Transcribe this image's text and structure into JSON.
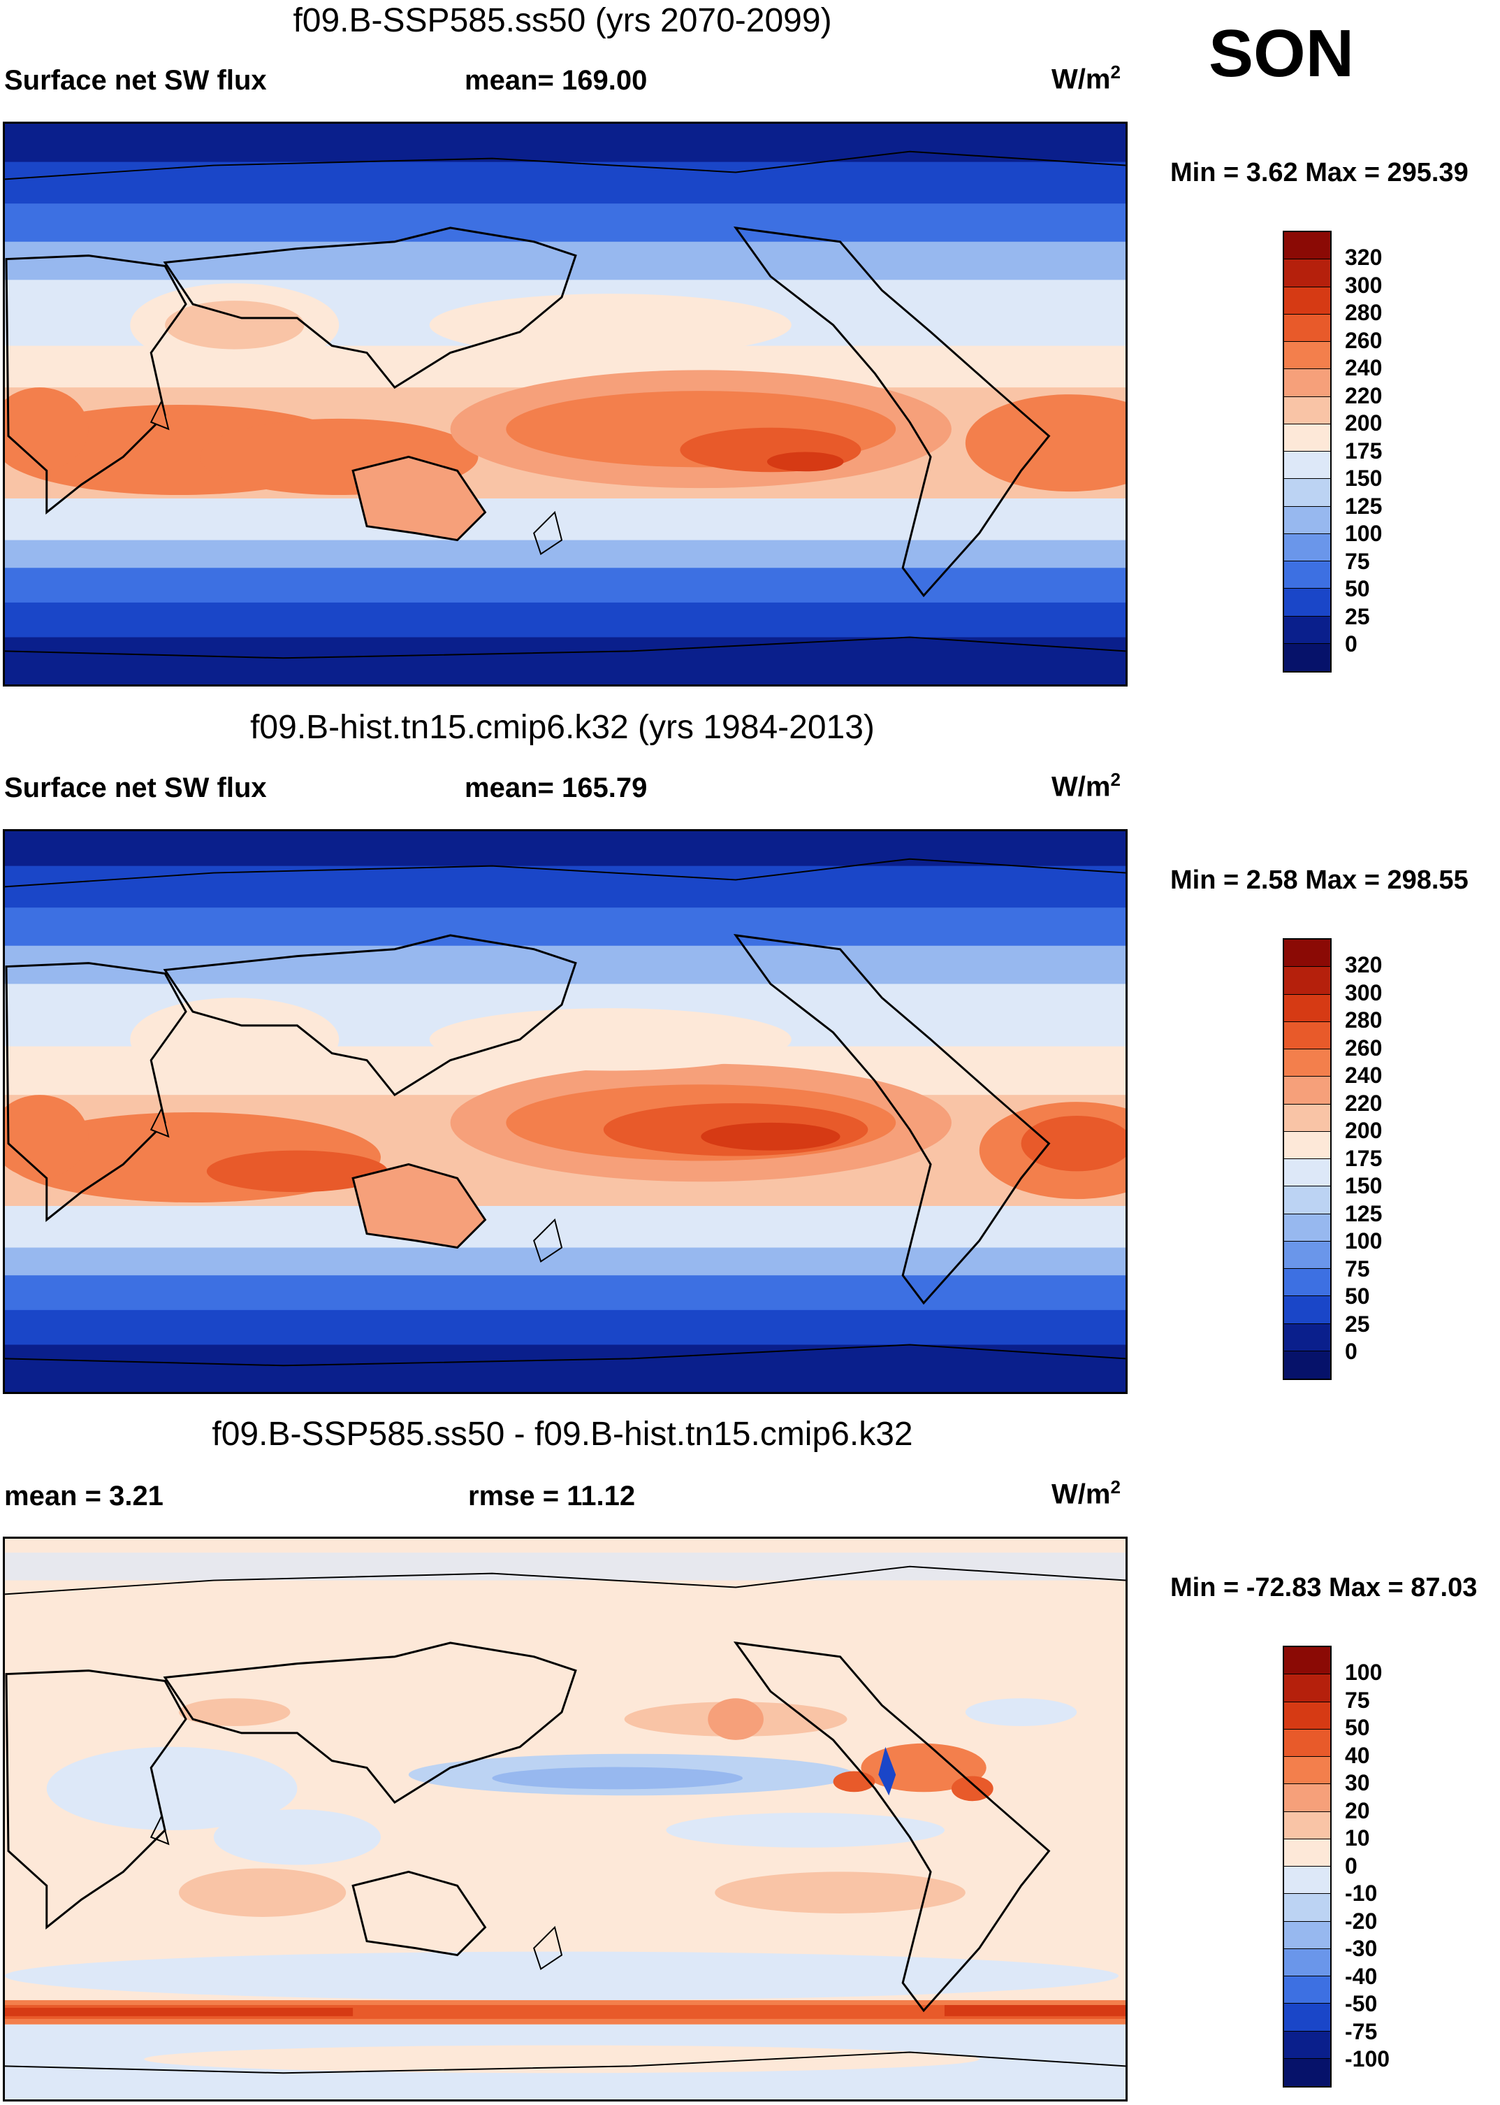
{
  "season": "SON",
  "panels": [
    {
      "title": "f09.B-SSP585.ss50 (yrs 2070-2099)",
      "left_label": "Surface net SW flux",
      "center_label": "mean= 169.00",
      "units_base": "W/m",
      "units_sup": "2",
      "minmax": "Min =   3.62 Max = 295.39",
      "colorbar_labels": [
        "320",
        "300",
        "280",
        "260",
        "240",
        "220",
        "200",
        "175",
        "150",
        "125",
        "100",
        "75",
        "50",
        "25",
        "0"
      ]
    },
    {
      "title": "f09.B-hist.tn15.cmip6.k32 (yrs 1984-2013)",
      "left_label": "Surface net SW flux",
      "center_label": "mean= 165.79",
      "units_base": "W/m",
      "units_sup": "2",
      "minmax": "Min =   2.58 Max = 298.55",
      "colorbar_labels": [
        "320",
        "300",
        "280",
        "260",
        "240",
        "220",
        "200",
        "175",
        "150",
        "125",
        "100",
        "75",
        "50",
        "25",
        "0"
      ]
    },
    {
      "title": "f09.B-SSP585.ss50 - f09.B-hist.tn15.cmip6.k32",
      "left_label": "mean =   3.21",
      "center_label": "rmse =  11.12",
      "units_base": "W/m",
      "units_sup": "2",
      "minmax": "Min = -72.83 Max =  87.03",
      "colorbar_labels": [
        "100",
        "75",
        "50",
        "40",
        "30",
        "20",
        "10",
        "0",
        "-10",
        "-20",
        "-30",
        "-40",
        "-50",
        "-75",
        "-100"
      ]
    }
  ],
  "colors": {
    "abs_scale": [
      "#8b0a05",
      "#b5200c",
      "#d63a14",
      "#e85a2a",
      "#f37f4c",
      "#f6a07a",
      "#f9c4a6",
      "#fde8d8",
      "#dde8f8",
      "#bcd3f3",
      "#97b8ef",
      "#6a96ea",
      "#3d70e2",
      "#1a46c8",
      "#0a1f8c",
      "#06126a"
    ],
    "diff_scale": [
      "#8b0a05",
      "#b5200c",
      "#d63a14",
      "#e85a2a",
      "#f37f4c",
      "#f6a07a",
      "#f9c4a6",
      "#fde8d8",
      "#dde8f8",
      "#bcd3f3",
      "#97b8ef",
      "#6a96ea",
      "#3d70e2",
      "#1a46c8",
      "#0a1f8c",
      "#06126a"
    ]
  }
}
